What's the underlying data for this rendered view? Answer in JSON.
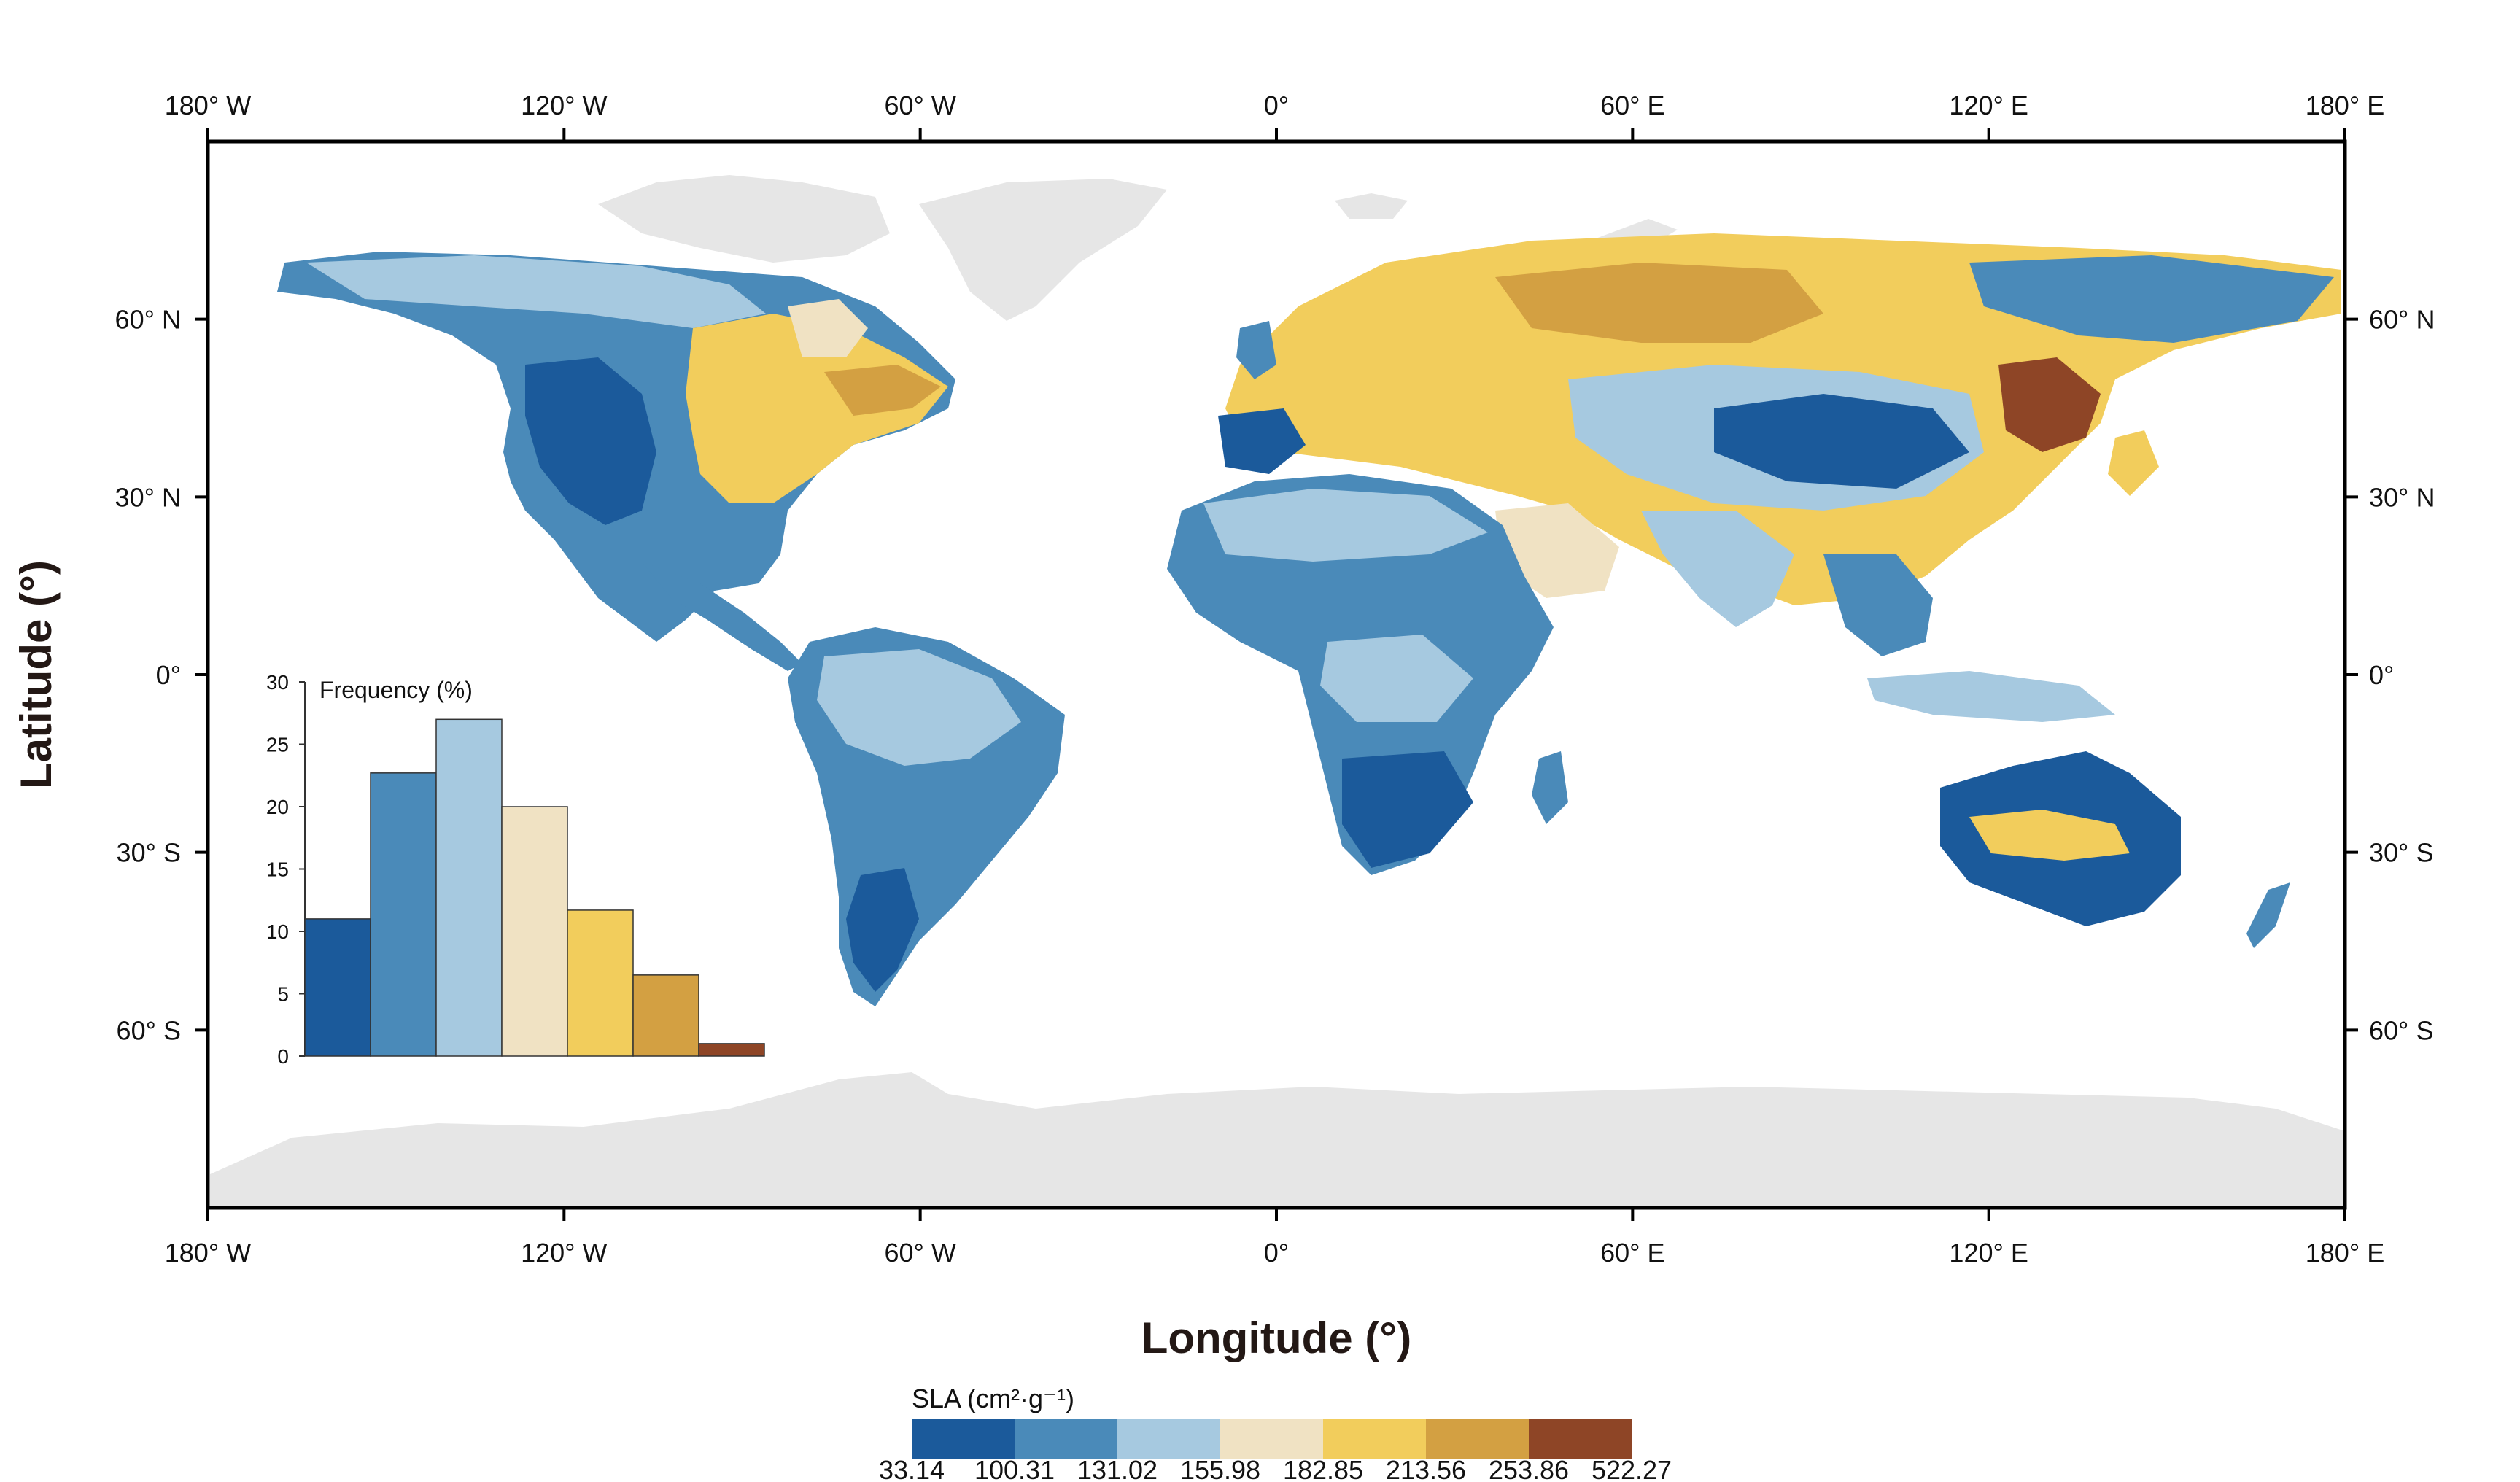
{
  "map": {
    "x_axis": {
      "title": "Longitude (°)",
      "ticks": [
        {
          "value": -180,
          "label": "180° W"
        },
        {
          "value": -120,
          "label": "120° W"
        },
        {
          "value": -60,
          "label": "60° W"
        },
        {
          "value": 0,
          "label": "0°"
        },
        {
          "value": 60,
          "label": "60° E"
        },
        {
          "value": 120,
          "label": "120° E"
        },
        {
          "value": 180,
          "label": "180° E"
        }
      ],
      "range": [
        -180,
        180
      ]
    },
    "y_axis": {
      "title": "Latitude (°)",
      "ticks": [
        {
          "value": 60,
          "label": "60° N"
        },
        {
          "value": 30,
          "label": "30° N"
        },
        {
          "value": 0,
          "label": "0°"
        },
        {
          "value": -30,
          "label": "30° S"
        },
        {
          "value": -60,
          "label": "60° S"
        }
      ],
      "range": [
        -90,
        90
      ]
    },
    "colors": {
      "no_data_land": "#e6e6e6",
      "ocean": "#ffffff",
      "frame": "#000000"
    }
  },
  "legend": {
    "title": "SLA (cm²·g⁻¹)",
    "breaks": [
      "33.14",
      "100.31",
      "131.02",
      "155.98",
      "182.85",
      "213.56",
      "253.86",
      "522.27"
    ],
    "colors": [
      "#1b5a9b",
      "#4a8ab9",
      "#a6c9e0",
      "#f0e2c3",
      "#f2cd5c",
      "#d3a042",
      "#8e4526"
    ]
  },
  "chart_data": {
    "type": "bar",
    "title": "Frequency (%)",
    "ylabel": "",
    "xlabel": "",
    "ylim": [
      0,
      30
    ],
    "yticks": [
      0,
      5,
      10,
      15,
      20,
      25,
      30
    ],
    "values": [
      11,
      22.7,
      27,
      20,
      11.7,
      6.5,
      1
    ],
    "colors": [
      "#1b5a9b",
      "#4a8ab9",
      "#a6c9e0",
      "#f0e2c3",
      "#f2cd5c",
      "#d3a042",
      "#8e4526"
    ]
  }
}
